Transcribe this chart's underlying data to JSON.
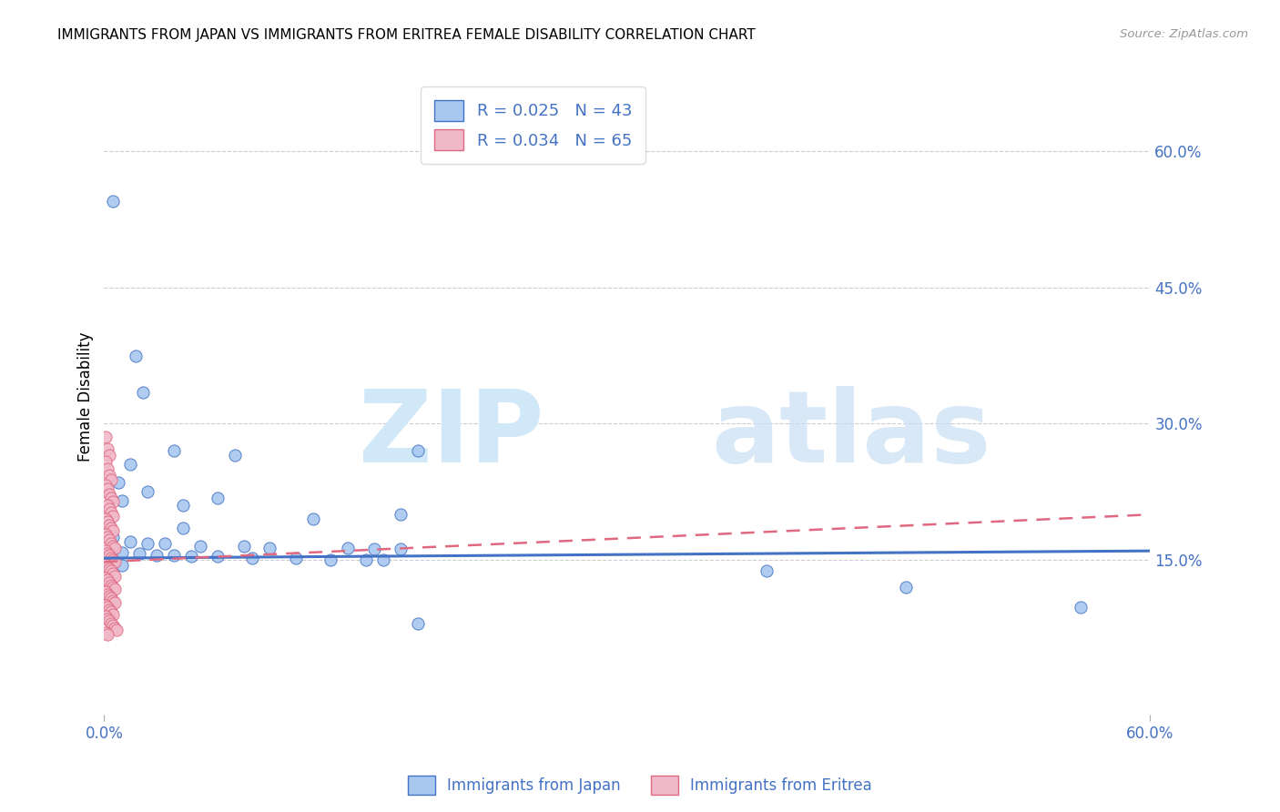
{
  "title": "IMMIGRANTS FROM JAPAN VS IMMIGRANTS FROM ERITREA FEMALE DISABILITY CORRELATION CHART",
  "source": "Source: ZipAtlas.com",
  "ylabel": "Female Disability",
  "xlim": [
    0.0,
    0.6
  ],
  "ylim": [
    -0.02,
    0.68
  ],
  "xticks": [
    0.0,
    0.6
  ],
  "xtick_labels": [
    "0.0%",
    "60.0%"
  ],
  "ytick_vals_right": [
    0.15,
    0.3,
    0.45,
    0.6
  ],
  "ytick_labels_right": [
    "15.0%",
    "30.0%",
    "45.0%",
    "60.0%"
  ],
  "legend1_label": "R = 0.025   N = 43",
  "legend2_label": "R = 0.034   N = 65",
  "color_japan": "#a8c8f0",
  "color_eritrea": "#f0b8c8",
  "line_color_japan": "#4472c4",
  "line_color_eritrea": "#e06880",
  "background_color": "#ffffff",
  "japan_scatter": [
    [
      0.005,
      0.545
    ],
    [
      0.018,
      0.375
    ],
    [
      0.022,
      0.335
    ],
    [
      0.015,
      0.255
    ],
    [
      0.04,
      0.27
    ],
    [
      0.075,
      0.265
    ],
    [
      0.025,
      0.225
    ],
    [
      0.008,
      0.235
    ],
    [
      0.065,
      0.218
    ],
    [
      0.01,
      0.215
    ],
    [
      0.045,
      0.21
    ],
    [
      0.12,
      0.195
    ],
    [
      0.17,
      0.2
    ],
    [
      0.18,
      0.27
    ],
    [
      0.045,
      0.185
    ],
    [
      0.005,
      0.175
    ],
    [
      0.015,
      0.17
    ],
    [
      0.025,
      0.168
    ],
    [
      0.035,
      0.168
    ],
    [
      0.055,
      0.165
    ],
    [
      0.08,
      0.165
    ],
    [
      0.095,
      0.163
    ],
    [
      0.14,
      0.163
    ],
    [
      0.155,
      0.162
    ],
    [
      0.17,
      0.162
    ],
    [
      0.005,
      0.16
    ],
    [
      0.01,
      0.158
    ],
    [
      0.02,
      0.157
    ],
    [
      0.03,
      0.155
    ],
    [
      0.04,
      0.155
    ],
    [
      0.05,
      0.154
    ],
    [
      0.065,
      0.154
    ],
    [
      0.085,
      0.152
    ],
    [
      0.11,
      0.152
    ],
    [
      0.13,
      0.15
    ],
    [
      0.15,
      0.15
    ],
    [
      0.16,
      0.15
    ],
    [
      0.005,
      0.145
    ],
    [
      0.01,
      0.144
    ],
    [
      0.38,
      0.138
    ],
    [
      0.46,
      0.12
    ],
    [
      0.56,
      0.098
    ],
    [
      0.18,
      0.08
    ]
  ],
  "eritrea_scatter": [
    [
      0.001,
      0.285
    ],
    [
      0.002,
      0.272
    ],
    [
      0.003,
      0.265
    ],
    [
      0.001,
      0.258
    ],
    [
      0.002,
      0.25
    ],
    [
      0.003,
      0.243
    ],
    [
      0.004,
      0.238
    ],
    [
      0.001,
      0.232
    ],
    [
      0.002,
      0.228
    ],
    [
      0.003,
      0.222
    ],
    [
      0.004,
      0.218
    ],
    [
      0.005,
      0.214
    ],
    [
      0.002,
      0.21
    ],
    [
      0.003,
      0.206
    ],
    [
      0.004,
      0.202
    ],
    [
      0.005,
      0.198
    ],
    [
      0.001,
      0.195
    ],
    [
      0.002,
      0.192
    ],
    [
      0.003,
      0.188
    ],
    [
      0.004,
      0.185
    ],
    [
      0.005,
      0.182
    ],
    [
      0.001,
      0.178
    ],
    [
      0.002,
      0.175
    ],
    [
      0.003,
      0.172
    ],
    [
      0.004,
      0.168
    ],
    [
      0.005,
      0.165
    ],
    [
      0.006,
      0.163
    ],
    [
      0.001,
      0.16
    ],
    [
      0.002,
      0.157
    ],
    [
      0.003,
      0.155
    ],
    [
      0.004,
      0.152
    ],
    [
      0.005,
      0.15
    ],
    [
      0.006,
      0.148
    ],
    [
      0.001,
      0.145
    ],
    [
      0.002,
      0.142
    ],
    [
      0.003,
      0.14
    ],
    [
      0.004,
      0.138
    ],
    [
      0.005,
      0.135
    ],
    [
      0.006,
      0.132
    ],
    [
      0.001,
      0.13
    ],
    [
      0.002,
      0.128
    ],
    [
      0.003,
      0.125
    ],
    [
      0.004,
      0.122
    ],
    [
      0.005,
      0.12
    ],
    [
      0.006,
      0.118
    ],
    [
      0.001,
      0.115
    ],
    [
      0.002,
      0.112
    ],
    [
      0.003,
      0.11
    ],
    [
      0.004,
      0.108
    ],
    [
      0.005,
      0.105
    ],
    [
      0.006,
      0.103
    ],
    [
      0.001,
      0.1
    ],
    [
      0.002,
      0.098
    ],
    [
      0.003,
      0.095
    ],
    [
      0.004,
      0.093
    ],
    [
      0.005,
      0.09
    ],
    [
      0.001,
      0.088
    ],
    [
      0.002,
      0.085
    ],
    [
      0.003,
      0.083
    ],
    [
      0.004,
      0.08
    ],
    [
      0.005,
      0.078
    ],
    [
      0.006,
      0.075
    ],
    [
      0.007,
      0.073
    ],
    [
      0.001,
      0.07
    ],
    [
      0.002,
      0.068
    ]
  ],
  "japan_trendline_x": [
    0.0,
    0.6
  ],
  "japan_trendline_y": [
    0.152,
    0.16
  ],
  "eritrea_trendline_x": [
    0.0,
    0.6
  ],
  "eritrea_trendline_y": [
    0.148,
    0.2
  ],
  "grid_yticks": [
    0.15,
    0.3,
    0.45,
    0.6
  ],
  "watermark_zip_color": "#d0e8f8",
  "watermark_atlas_color": "#c8dff5"
}
